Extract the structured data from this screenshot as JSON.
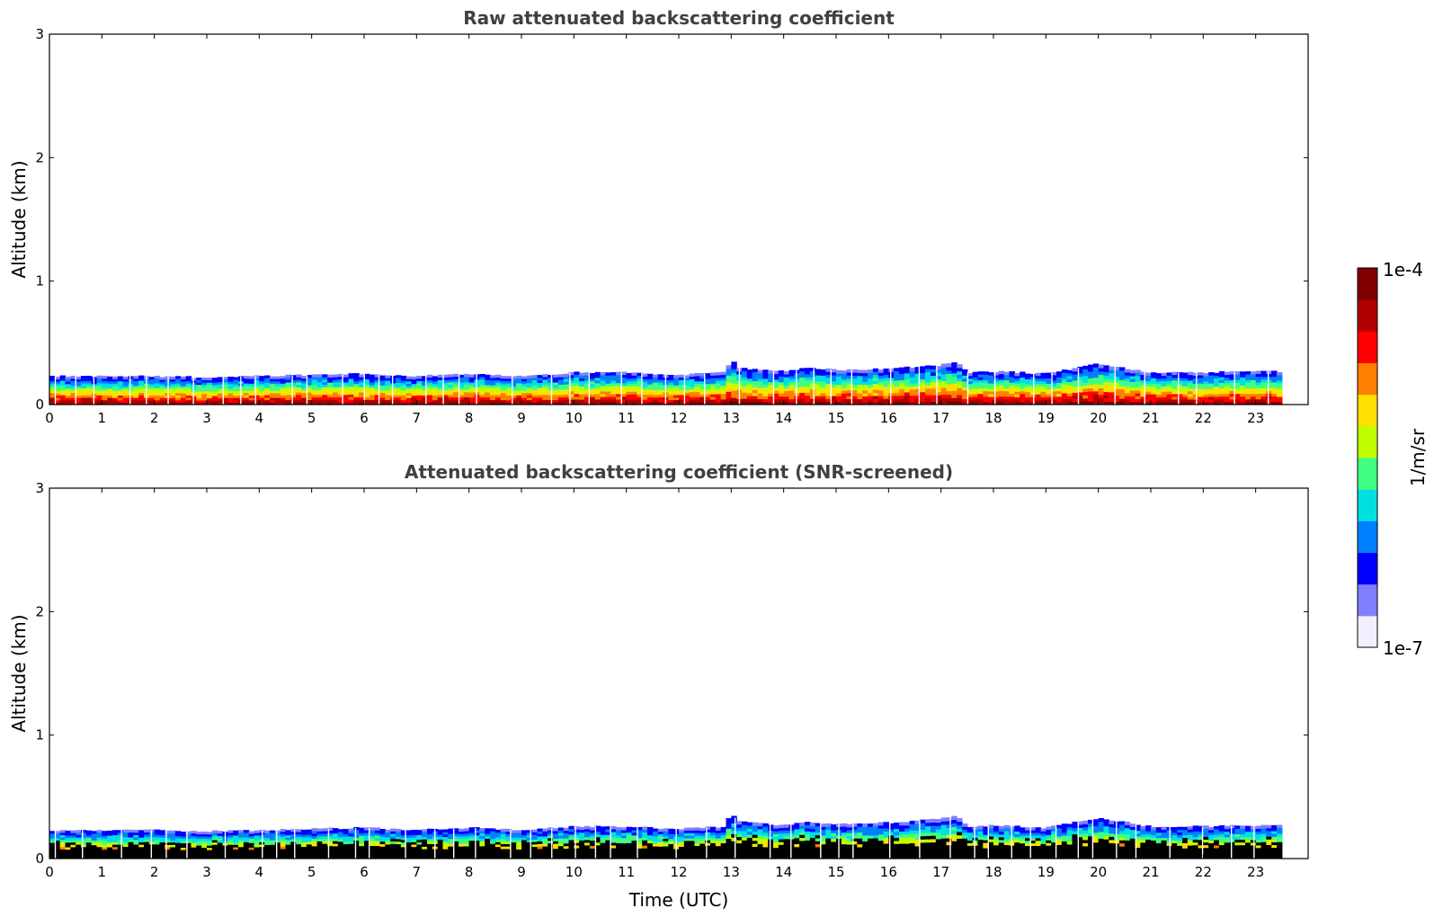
{
  "chart_data": [
    {
      "type": "heatmap",
      "title": "Raw attenuated backscattering coefficient",
      "xlabel": "",
      "ylabel": "Altitude (km)",
      "xlim": [
        0,
        24
      ],
      "ylim": [
        0,
        3
      ],
      "x_ticks": [
        "0",
        "1",
        "2",
        "3",
        "4",
        "5",
        "6",
        "7",
        "8",
        "9",
        "10",
        "11",
        "12",
        "13",
        "14",
        "15",
        "16",
        "17",
        "18",
        "19",
        "20",
        "21",
        "22",
        "23"
      ],
      "y_ticks": [
        "0",
        "1",
        "2",
        "3"
      ],
      "data_end_hour": 23.5,
      "layer_top_km": [
        [
          0,
          0.23
        ],
        [
          1,
          0.23
        ],
        [
          2,
          0.23
        ],
        [
          3,
          0.22
        ],
        [
          4,
          0.23
        ],
        [
          5,
          0.24
        ],
        [
          6,
          0.25
        ],
        [
          7,
          0.23
        ],
        [
          8,
          0.25
        ],
        [
          9,
          0.23
        ],
        [
          10,
          0.26
        ],
        [
          11,
          0.26
        ],
        [
          12,
          0.24
        ],
        [
          12.9,
          0.26
        ],
        [
          13,
          0.38
        ],
        [
          13.1,
          0.3
        ],
        [
          14,
          0.27
        ],
        [
          14.5,
          0.3
        ],
        [
          15,
          0.28
        ],
        [
          16,
          0.29
        ],
        [
          17,
          0.32
        ],
        [
          17.3,
          0.35
        ],
        [
          17.5,
          0.26
        ],
        [
          18,
          0.27
        ],
        [
          19,
          0.25
        ],
        [
          20,
          0.33
        ],
        [
          21,
          0.26
        ],
        [
          22,
          0.26
        ],
        [
          23,
          0.27
        ],
        [
          23.5,
          0.27
        ]
      ],
      "masked_below_signal": false
    },
    {
      "type": "heatmap",
      "title": "Attenuated backscattering coefficient (SNR-screened)",
      "xlabel": "Time (UTC)",
      "ylabel": "Altitude (km)",
      "xlim": [
        0,
        24
      ],
      "ylim": [
        0,
        3
      ],
      "x_ticks": [
        "0",
        "1",
        "2",
        "3",
        "4",
        "5",
        "6",
        "7",
        "8",
        "9",
        "10",
        "11",
        "12",
        "13",
        "14",
        "15",
        "16",
        "17",
        "18",
        "19",
        "20",
        "21",
        "22",
        "23"
      ],
      "y_ticks": [
        "0",
        "1",
        "2",
        "3"
      ],
      "data_end_hour": 23.5,
      "layer_top_km": [
        [
          0,
          0.23
        ],
        [
          1,
          0.23
        ],
        [
          2,
          0.23
        ],
        [
          3,
          0.22
        ],
        [
          4,
          0.23
        ],
        [
          5,
          0.24
        ],
        [
          6,
          0.25
        ],
        [
          7,
          0.23
        ],
        [
          8,
          0.25
        ],
        [
          9,
          0.23
        ],
        [
          10,
          0.26
        ],
        [
          11,
          0.26
        ],
        [
          12,
          0.24
        ],
        [
          12.9,
          0.26
        ],
        [
          13,
          0.38
        ],
        [
          13.1,
          0.3
        ],
        [
          14,
          0.27
        ],
        [
          14.5,
          0.3
        ],
        [
          15,
          0.28
        ],
        [
          16,
          0.29
        ],
        [
          17,
          0.32
        ],
        [
          17.3,
          0.35
        ],
        [
          17.5,
          0.26
        ],
        [
          18,
          0.27
        ],
        [
          19,
          0.25
        ],
        [
          20,
          0.33
        ],
        [
          21,
          0.26
        ],
        [
          22,
          0.26
        ],
        [
          23,
          0.27
        ],
        [
          23.5,
          0.27
        ]
      ],
      "masked_below_signal": true
    }
  ],
  "colorbar": {
    "label": "1/m/sr",
    "min_label": "1e-7",
    "max_label": "1e-4",
    "colors": [
      "#f0f0ff",
      "#8080ff",
      "#0000ff",
      "#0080ff",
      "#00e0e0",
      "#40ff80",
      "#c0ff00",
      "#ffe000",
      "#ff8000",
      "#ff0000",
      "#b00000",
      "#800000"
    ]
  }
}
